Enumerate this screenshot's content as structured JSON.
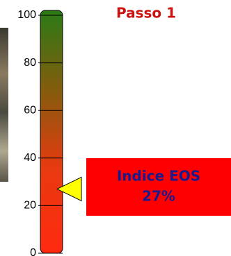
{
  "chart_data": {
    "type": "gauge",
    "title": "Passo 1",
    "categories": [
      "Indice EOS"
    ],
    "values": [
      27
    ],
    "value_labels": [
      "27%"
    ],
    "color": "#ffff00",
    "label_box_color": "#ff0000",
    "ylim": [
      0,
      100
    ],
    "yticks": [
      0,
      20,
      40,
      60,
      80,
      100
    ]
  }
}
